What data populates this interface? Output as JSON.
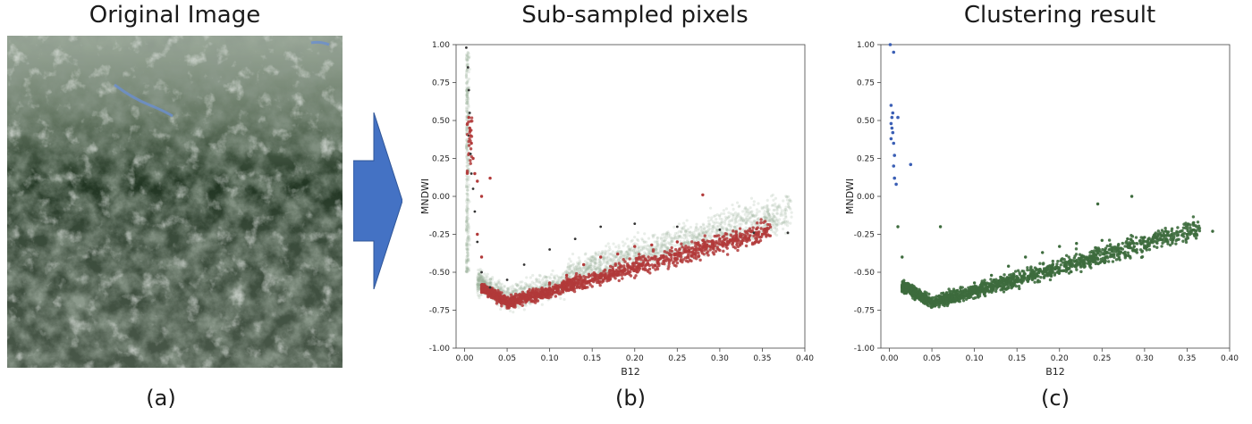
{
  "panels": {
    "a": {
      "title": "Original Image",
      "caption": "(a)"
    },
    "b": {
      "title": "Sub-sampled pixels",
      "caption": "(b)"
    },
    "c": {
      "title": "Clustering result",
      "caption": "(c)"
    }
  },
  "icons": {
    "transition": "right-arrow-icon",
    "image": "satellite-image-icon"
  },
  "colors": {
    "arrow": "#4472c4",
    "background_density": "#9bb39b",
    "sampled_points": "#b23a3a",
    "cluster_land": "#3d6b3d",
    "cluster_water": "#3b5fb5",
    "dark_points": "#333333"
  },
  "chart_data": [
    {
      "id": "b",
      "type": "scatter",
      "title": "",
      "xlabel": "B12",
      "ylabel": "MNDWI",
      "xlim": [
        -0.01,
        0.4
      ],
      "ylim": [
        -1.0,
        1.0
      ],
      "xticks": [
        "0.00",
        "0.05",
        "0.10",
        "0.15",
        "0.20",
        "0.25",
        "0.30",
        "0.35",
        "0.40"
      ],
      "yticks": [
        "1.00",
        "0.75",
        "0.50",
        "0.25",
        "0.00",
        "-0.25",
        "-0.50",
        "-0.75",
        "-1.00"
      ],
      "grid": false,
      "series": [
        {
          "role": "all-pixels-density",
          "points": [
            [
              0.002,
              0.98
            ],
            [
              0.004,
              0.85
            ],
            [
              0.005,
              0.7
            ],
            [
              0.006,
              0.55
            ],
            [
              0.005,
              0.4
            ],
            [
              0.007,
              0.28
            ],
            [
              0.008,
              0.15
            ],
            [
              0.01,
              0.05
            ],
            [
              0.012,
              -0.1
            ],
            [
              0.015,
              -0.3
            ],
            [
              0.02,
              -0.5
            ],
            [
              0.03,
              -0.6
            ],
            [
              0.05,
              -0.55
            ],
            [
              0.07,
              -0.45
            ],
            [
              0.1,
              -0.35
            ],
            [
              0.13,
              -0.28
            ],
            [
              0.16,
              -0.2
            ],
            [
              0.2,
              -0.18
            ],
            [
              0.25,
              -0.2
            ],
            [
              0.3,
              -0.22
            ],
            [
              0.34,
              -0.24
            ],
            [
              0.38,
              -0.24
            ]
          ]
        },
        {
          "role": "sub-sampled",
          "points": [
            [
              0.005,
              0.52
            ],
            [
              0.006,
              0.45
            ],
            [
              0.007,
              0.4
            ],
            [
              0.008,
              0.35
            ],
            [
              0.01,
              0.25
            ],
            [
              0.012,
              0.15
            ],
            [
              0.015,
              0.1
            ],
            [
              0.02,
              0.0
            ],
            [
              0.035,
              -0.62
            ],
            [
              0.045,
              -0.7
            ],
            [
              0.055,
              -0.72
            ],
            [
              0.065,
              -0.68
            ],
            [
              0.08,
              -0.62
            ],
            [
              0.1,
              -0.57
            ],
            [
              0.12,
              -0.52
            ],
            [
              0.14,
              -0.45
            ],
            [
              0.16,
              -0.4
            ],
            [
              0.18,
              -0.38
            ],
            [
              0.2,
              -0.33
            ],
            [
              0.22,
              -0.32
            ],
            [
              0.25,
              -0.3
            ],
            [
              0.28,
              -0.29
            ],
            [
              0.3,
              -0.28
            ],
            [
              0.32,
              -0.27
            ],
            [
              0.35,
              -0.25
            ],
            [
              0.28,
              0.01
            ],
            [
              0.02,
              -0.4
            ],
            [
              0.015,
              -0.25
            ],
            [
              0.03,
              0.12
            ]
          ]
        }
      ]
    },
    {
      "id": "c",
      "type": "scatter",
      "title": "",
      "xlabel": "B12",
      "ylabel": "MNDWI",
      "xlim": [
        -0.01,
        0.4
      ],
      "ylim": [
        -1.0,
        1.0
      ],
      "xticks": [
        "0.00",
        "0.05",
        "0.10",
        "0.15",
        "0.20",
        "0.25",
        "0.30",
        "0.35",
        "0.40"
      ],
      "yticks": [
        "1.00",
        "0.75",
        "0.50",
        "0.25",
        "0.00",
        "-0.25",
        "-0.50",
        "-0.75",
        "-1.00"
      ],
      "grid": false,
      "series": [
        {
          "role": "cluster-water",
          "points": [
            [
              0.001,
              1.0
            ],
            [
              0.005,
              0.95
            ],
            [
              0.002,
              0.6
            ],
            [
              0.004,
              0.55
            ],
            [
              0.003,
              0.52
            ],
            [
              0.002,
              0.48
            ],
            [
              0.003,
              0.45
            ],
            [
              0.004,
              0.42
            ],
            [
              0.002,
              0.38
            ],
            [
              0.005,
              0.35
            ],
            [
              0.01,
              0.52
            ],
            [
              0.006,
              0.27
            ],
            [
              0.005,
              0.2
            ],
            [
              0.006,
              0.12
            ],
            [
              0.008,
              0.08
            ],
            [
              0.025,
              0.21
            ]
          ]
        },
        {
          "role": "cluster-land",
          "points": [
            [
              0.02,
              -0.6
            ],
            [
              0.03,
              -0.68
            ],
            [
              0.04,
              -0.7
            ],
            [
              0.05,
              -0.72
            ],
            [
              0.06,
              -0.7
            ],
            [
              0.07,
              -0.66
            ],
            [
              0.08,
              -0.62
            ],
            [
              0.1,
              -0.57
            ],
            [
              0.12,
              -0.52
            ],
            [
              0.14,
              -0.46
            ],
            [
              0.16,
              -0.4
            ],
            [
              0.18,
              -0.37
            ],
            [
              0.2,
              -0.33
            ],
            [
              0.22,
              -0.31
            ],
            [
              0.25,
              -0.29
            ],
            [
              0.28,
              -0.28
            ],
            [
              0.3,
              -0.27
            ],
            [
              0.32,
              -0.26
            ],
            [
              0.35,
              -0.25
            ],
            [
              0.38,
              -0.23
            ],
            [
              0.285,
              0.0
            ],
            [
              0.245,
              -0.05
            ],
            [
              0.06,
              -0.2
            ],
            [
              0.015,
              -0.4
            ],
            [
              0.01,
              -0.2
            ]
          ]
        }
      ]
    }
  ]
}
